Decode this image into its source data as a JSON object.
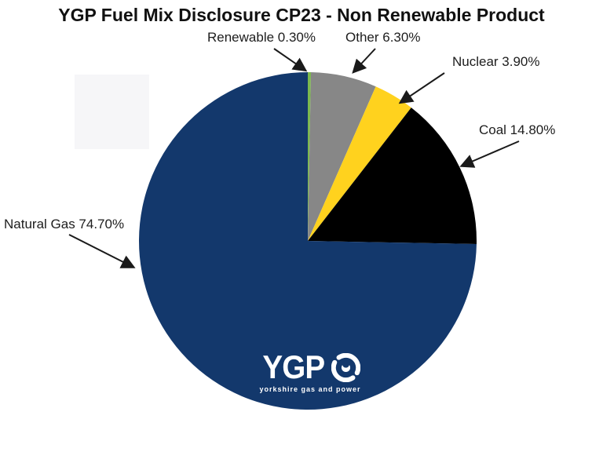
{
  "chart_data": {
    "type": "pie",
    "title": "YGP Fuel Mix Disclosure CP23 - Non Renewable Product",
    "direction": "clockwise",
    "start_angle_deg": 0,
    "legend_position": "none",
    "labels_style": "external-arrow-callouts",
    "background": "#FFFFFF",
    "slices": [
      {
        "label": "Renewable",
        "value": 0.3,
        "display": "Renewable 0.30%",
        "color": "#7CB84E"
      },
      {
        "label": "Other",
        "value": 6.3,
        "display": "Other 6.30%",
        "color": "#878787"
      },
      {
        "label": "Nuclear",
        "value": 3.9,
        "display": "Nuclear 3.90%",
        "color": "#FFD21E"
      },
      {
        "label": "Coal",
        "value": 14.8,
        "display": "Coal 14.80%",
        "color": "#000000"
      },
      {
        "label": "Natural Gas",
        "value": 74.7,
        "display": "Natural Gas 74.70%",
        "color": "#13386C"
      }
    ]
  },
  "logo": {
    "text": "YGP",
    "tagline": "yorkshire gas and power",
    "icon": "swirl-globe-icon",
    "text_color": "#FFFFFF"
  },
  "colors": {
    "text": "#1A1A1A",
    "arrow": "#1A1A1A"
  }
}
